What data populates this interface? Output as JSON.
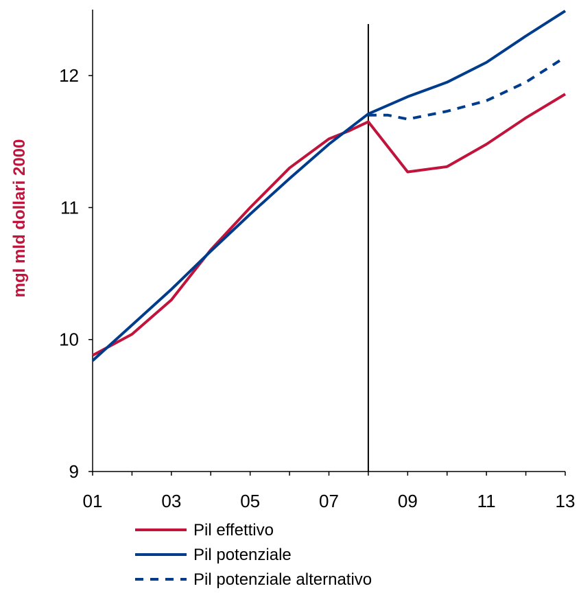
{
  "chart_data": {
    "type": "line",
    "xlabel": "",
    "ylabel": "mgl mld dollari 2000",
    "x": [
      1,
      2,
      3,
      4,
      5,
      6,
      7,
      8,
      9,
      10,
      11,
      12,
      13
    ],
    "x_tick_values": [
      1,
      3,
      5,
      7,
      9,
      11,
      13
    ],
    "x_tick_labels": [
      "01",
      "03",
      "05",
      "07",
      "09",
      "11",
      "13"
    ],
    "y_tick_values": [
      9,
      10,
      11,
      12
    ],
    "y_tick_labels": [
      "9",
      "10",
      "11",
      "12"
    ],
    "xlim": [
      1,
      13
    ],
    "ylim": [
      9,
      12.5
    ],
    "grid": false,
    "legend_position": "bottom-left",
    "vertical_marker": {
      "x": 8
    },
    "series": [
      {
        "name": "Pil effettivo",
        "color": "#C0143C",
        "style": "solid",
        "x": [
          1,
          2,
          3,
          4,
          5,
          6,
          7,
          7.5,
          8,
          9,
          10,
          11,
          12,
          13
        ],
        "y": [
          9.88,
          10.04,
          10.3,
          10.68,
          11.0,
          11.3,
          11.52,
          11.58,
          11.65,
          11.27,
          11.31,
          11.48,
          11.68,
          11.86
        ]
      },
      {
        "name": "Pil potenziale",
        "color": "#003C8C",
        "style": "solid",
        "x": [
          1,
          2,
          3,
          4,
          5,
          6,
          7,
          8,
          9,
          10,
          11,
          12,
          13
        ],
        "y": [
          9.84,
          10.11,
          10.38,
          10.67,
          10.95,
          11.22,
          11.48,
          11.71,
          11.84,
          11.95,
          12.1,
          12.3,
          12.49
        ]
      },
      {
        "name": "Pil potenziale alternativo",
        "color": "#003C8C",
        "style": "dashed",
        "x": [
          8,
          8.5,
          9,
          10,
          11,
          12,
          13
        ],
        "y": [
          11.7,
          11.7,
          11.67,
          11.73,
          11.81,
          11.95,
          12.14
        ]
      }
    ]
  }
}
